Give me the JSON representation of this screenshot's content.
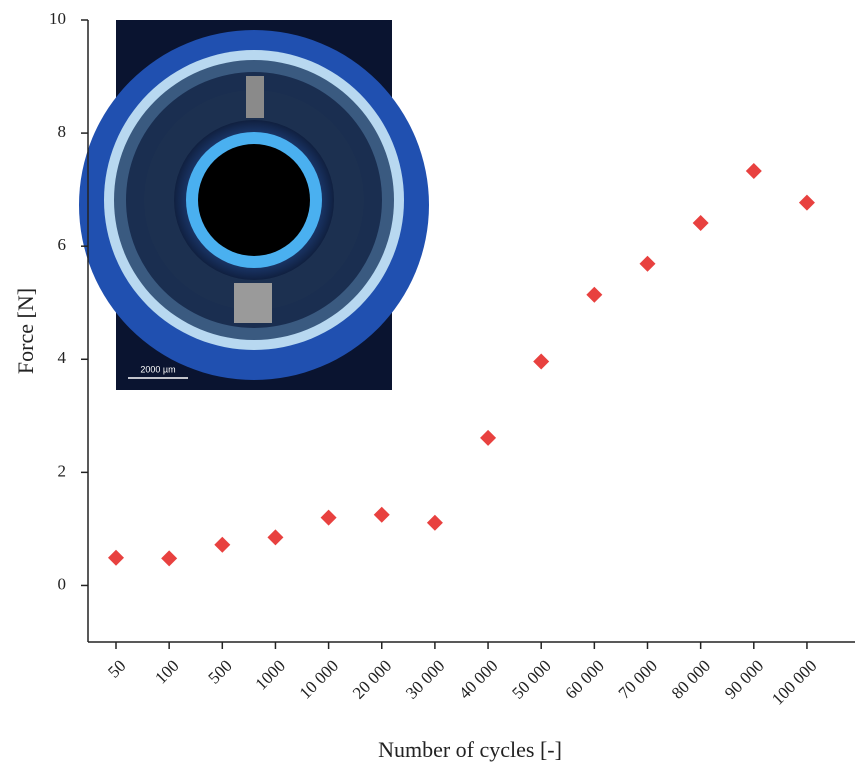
{
  "chart_data": {
    "type": "scatter",
    "x_label": "Number of cycles [-]",
    "y_label": "Force [N]",
    "categories": [
      "50",
      "100",
      "500",
      "1000",
      "10 000",
      "20 000",
      "30 000",
      "40 000",
      "50 000",
      "60 000",
      "70 000",
      "80 000",
      "90 000",
      "100 000"
    ],
    "series": [
      {
        "color": "#e8413f",
        "values": [
          0.49,
          0.48,
          0.72,
          0.85,
          1.2,
          1.25,
          1.11,
          2.61,
          3.96,
          5.14,
          5.69,
          6.41,
          7.33,
          6.77
        ]
      }
    ],
    "ylim": [
      -1,
      10
    ],
    "yticks": [
      0,
      2,
      4,
      6,
      8,
      10
    ],
    "inset_scale_label": "2000 µm"
  }
}
